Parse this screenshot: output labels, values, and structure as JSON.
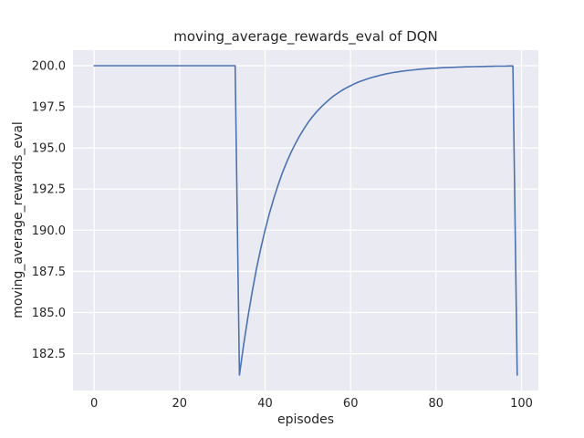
{
  "chart_data": {
    "type": "line",
    "title": "moving_average_rewards_eval of DQN",
    "xlabel": "episodes",
    "ylabel": "moving_average_rewards_eval",
    "xlim": [
      -4.95,
      103.95
    ],
    "ylim": [
      180.26,
      200.94
    ],
    "xticks": [
      0,
      20,
      40,
      60,
      80,
      100
    ],
    "xtick_labels": [
      "0",
      "20",
      "40",
      "60",
      "80",
      "100"
    ],
    "yticks": [
      182.5,
      185.0,
      187.5,
      190.0,
      192.5,
      195.0,
      197.5,
      200.0
    ],
    "ytick_labels": [
      "182.5",
      "185.0",
      "187.5",
      "190.0",
      "192.5",
      "195.0",
      "197.5",
      "200.0"
    ],
    "grid": true,
    "legend": "none",
    "line_color": "#4c72b0",
    "plot_bg": "#eaeaf2",
    "grid_color": "#ffffff",
    "x": [
      0,
      1,
      2,
      3,
      4,
      5,
      6,
      7,
      8,
      9,
      10,
      11,
      12,
      13,
      14,
      15,
      16,
      17,
      18,
      19,
      20,
      21,
      22,
      23,
      24,
      25,
      26,
      27,
      28,
      29,
      30,
      31,
      32,
      33,
      34,
      35,
      36,
      37,
      38,
      39,
      40,
      41,
      42,
      43,
      44,
      45,
      46,
      47,
      48,
      49,
      50,
      51,
      52,
      53,
      54,
      55,
      56,
      57,
      58,
      59,
      60,
      61,
      62,
      63,
      64,
      65,
      66,
      67,
      68,
      69,
      70,
      71,
      72,
      73,
      74,
      75,
      76,
      77,
      78,
      79,
      80,
      81,
      82,
      83,
      84,
      85,
      86,
      87,
      88,
      89,
      90,
      91,
      92,
      93,
      94,
      95,
      96,
      97,
      98,
      99
    ],
    "y": [
      200,
      200,
      200,
      200,
      200,
      200,
      200,
      200,
      200,
      200,
      200,
      200,
      200,
      200,
      200,
      200,
      200,
      200,
      200,
      200,
      200,
      200,
      200,
      200,
      200,
      200,
      200,
      200,
      200,
      200,
      200,
      200,
      200,
      200,
      181.2,
      183.08,
      184.77,
      186.3,
      187.67,
      188.9,
      190.01,
      191.01,
      191.91,
      192.72,
      193.45,
      194.1,
      194.69,
      195.22,
      195.7,
      196.13,
      196.52,
      196.87,
      197.18,
      197.46,
      197.71,
      197.94,
      198.15,
      198.33,
      198.5,
      198.65,
      198.78,
      198.91,
      199.02,
      199.11,
      199.2,
      199.28,
      199.35,
      199.42,
      199.48,
      199.53,
      199.58,
      199.62,
      199.66,
      199.69,
      199.72,
      199.75,
      199.78,
      199.8,
      199.82,
      199.84,
      199.85,
      199.87,
      199.88,
      199.89,
      199.9,
      199.91,
      199.92,
      199.93,
      199.93,
      199.94,
      199.95,
      199.95,
      199.96,
      199.96,
      199.97,
      199.97,
      199.97,
      199.98,
      199.98,
      181.2
    ]
  }
}
